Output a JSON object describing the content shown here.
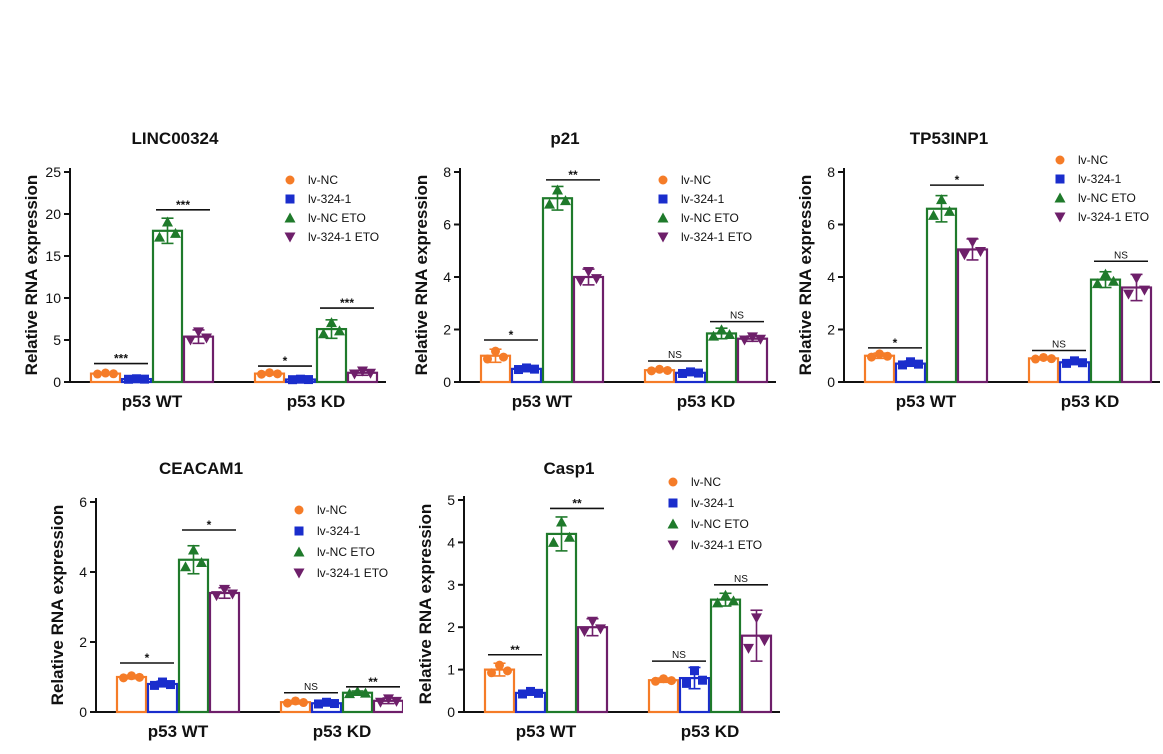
{
  "series_names": [
    "lv-NC",
    "lv-324-1",
    "lv-NC ETO",
    "lv-324-1 ETO"
  ],
  "colors": [
    "#f57c28",
    "#1a2dcc",
    "#1f7a2b",
    "#6e1f6a"
  ],
  "markers": [
    "circle",
    "square",
    "triangle",
    "triangle-down"
  ],
  "chart_data": [
    {
      "type": "bar",
      "title": "LINC00324",
      "ylabel": "Relative RNA expression",
      "xlabel": "",
      "categories": [
        "p53 WT",
        "p53 KD"
      ],
      "ylim": [
        0,
        25
      ],
      "yticks": [
        0,
        5,
        10,
        15,
        20,
        25
      ],
      "series": [
        {
          "name": "lv-NC",
          "values": [
            1.0,
            1.0
          ],
          "errors": [
            0.1,
            0.15
          ]
        },
        {
          "name": "lv-324-1",
          "values": [
            0.35,
            0.3
          ],
          "errors": [
            0.05,
            0.05
          ]
        },
        {
          "name": "lv-NC ETO",
          "values": [
            18.0,
            6.3
          ],
          "errors": [
            1.5,
            1.1
          ]
        },
        {
          "name": "lv-324-1 ETO",
          "values": [
            5.4,
            1.1
          ],
          "errors": [
            0.8,
            0.3
          ]
        }
      ],
      "significance": [
        {
          "group": 0,
          "from": 0,
          "to": 1,
          "label": "***",
          "value": 2.2
        },
        {
          "group": 0,
          "from": 2,
          "to": 3,
          "label": "***",
          "value": 20.5
        },
        {
          "group": 1,
          "from": 0,
          "to": 1,
          "label": "*",
          "value": 1.9
        },
        {
          "group": 1,
          "from": 2,
          "to": 3,
          "label": "***",
          "value": 8.8
        }
      ],
      "legend_position": "top-right"
    },
    {
      "type": "bar",
      "title": "p21",
      "ylabel": "Relative RNA expression",
      "xlabel": "",
      "categories": [
        "p53 WT",
        "p53 KD"
      ],
      "ylim": [
        0,
        8
      ],
      "yticks": [
        0,
        2,
        4,
        6,
        8
      ],
      "series": [
        {
          "name": "lv-NC",
          "values": [
            1.0,
            0.45
          ],
          "errors": [
            0.25,
            0.05
          ]
        },
        {
          "name": "lv-324-1",
          "values": [
            0.5,
            0.35
          ],
          "errors": [
            0.05,
            0.05
          ]
        },
        {
          "name": "lv-NC ETO",
          "values": [
            7.0,
            1.85
          ],
          "errors": [
            0.45,
            0.2
          ]
        },
        {
          "name": "lv-324-1 ETO",
          "values": [
            4.0,
            1.65
          ],
          "errors": [
            0.3,
            0.1
          ]
        }
      ],
      "significance": [
        {
          "group": 0,
          "from": 0,
          "to": 1,
          "label": "*",
          "value": 1.6
        },
        {
          "group": 0,
          "from": 2,
          "to": 3,
          "label": "**",
          "value": 7.7
        },
        {
          "group": 1,
          "from": 0,
          "to": 1,
          "label": "NS",
          "value": 0.8
        },
        {
          "group": 1,
          "from": 2,
          "to": 3,
          "label": "NS",
          "value": 2.3
        }
      ],
      "legend_position": "top-right"
    },
    {
      "type": "bar",
      "title": "TP53INP1",
      "ylabel": "Relative RNA expression",
      "xlabel": "",
      "categories": [
        "p53 WT",
        "p53 KD"
      ],
      "ylim": [
        0,
        8
      ],
      "yticks": [
        0,
        2,
        4,
        6,
        8
      ],
      "series": [
        {
          "name": "lv-NC",
          "values": [
            1.0,
            0.9
          ],
          "errors": [
            0.1,
            0.05
          ]
        },
        {
          "name": "lv-324-1",
          "values": [
            0.7,
            0.75
          ],
          "errors": [
            0.1,
            0.08
          ]
        },
        {
          "name": "lv-NC ETO",
          "values": [
            6.6,
            3.9
          ],
          "errors": [
            0.5,
            0.3
          ]
        },
        {
          "name": "lv-324-1 ETO",
          "values": [
            5.05,
            3.6
          ],
          "errors": [
            0.4,
            0.5
          ]
        }
      ],
      "significance": [
        {
          "group": 0,
          "from": 0,
          "to": 1,
          "label": "*",
          "value": 1.3
        },
        {
          "group": 0,
          "from": 2,
          "to": 3,
          "label": "*",
          "value": 7.5
        },
        {
          "group": 1,
          "from": 0,
          "to": 1,
          "label": "NS",
          "value": 1.2
        },
        {
          "group": 1,
          "from": 2,
          "to": 3,
          "label": "NS",
          "value": 4.6
        }
      ],
      "legend_position": "top-right"
    },
    {
      "type": "bar",
      "title": "CEACAM1",
      "ylabel": "Relative RNA expression",
      "xlabel": "",
      "categories": [
        "p53 WT",
        "p53 KD"
      ],
      "ylim": [
        0,
        6
      ],
      "yticks": [
        0,
        2,
        4,
        6
      ],
      "series": [
        {
          "name": "lv-NC",
          "values": [
            1.0,
            0.28
          ],
          "errors": [
            0.05,
            0.05
          ]
        },
        {
          "name": "lv-324-1",
          "values": [
            0.8,
            0.25
          ],
          "errors": [
            0.08,
            0.04
          ]
        },
        {
          "name": "lv-NC ETO",
          "values": [
            4.35,
            0.55
          ],
          "errors": [
            0.4,
            0.05
          ]
        },
        {
          "name": "lv-324-1 ETO",
          "values": [
            3.4,
            0.32
          ],
          "errors": [
            0.15,
            0.08
          ]
        }
      ],
      "significance": [
        {
          "group": 0,
          "from": 0,
          "to": 1,
          "label": "*",
          "value": 1.4
        },
        {
          "group": 0,
          "from": 2,
          "to": 3,
          "label": "*",
          "value": 5.2
        },
        {
          "group": 1,
          "from": 0,
          "to": 1,
          "label": "NS",
          "value": 0.55
        },
        {
          "group": 1,
          "from": 2,
          "to": 3,
          "label": "**",
          "value": 0.72
        }
      ],
      "legend_position": "top-right"
    },
    {
      "type": "bar",
      "title": "Casp1",
      "ylabel": "Relative RNA expression",
      "xlabel": "",
      "categories": [
        "p53 WT",
        "p53 KD"
      ],
      "ylim": [
        0,
        5
      ],
      "yticks": [
        0,
        1,
        2,
        3,
        4,
        5
      ],
      "series": [
        {
          "name": "lv-NC",
          "values": [
            1.0,
            0.75
          ],
          "errors": [
            0.15,
            0.05
          ]
        },
        {
          "name": "lv-324-1",
          "values": [
            0.45,
            0.8
          ],
          "errors": [
            0.05,
            0.25
          ]
        },
        {
          "name": "lv-NC ETO",
          "values": [
            4.2,
            2.65
          ],
          "errors": [
            0.4,
            0.15
          ]
        },
        {
          "name": "lv-324-1 ETO",
          "values": [
            2.0,
            1.8
          ],
          "errors": [
            0.2,
            0.6
          ]
        }
      ],
      "significance": [
        {
          "group": 0,
          "from": 0,
          "to": 1,
          "label": "**",
          "value": 1.35
        },
        {
          "group": 0,
          "from": 2,
          "to": 3,
          "label": "**",
          "value": 4.8
        },
        {
          "group": 1,
          "from": 0,
          "to": 1,
          "label": "NS",
          "value": 1.2
        },
        {
          "group": 1,
          "from": 2,
          "to": 3,
          "label": "NS",
          "value": 3.0
        }
      ],
      "legend_position": "top-right"
    }
  ]
}
